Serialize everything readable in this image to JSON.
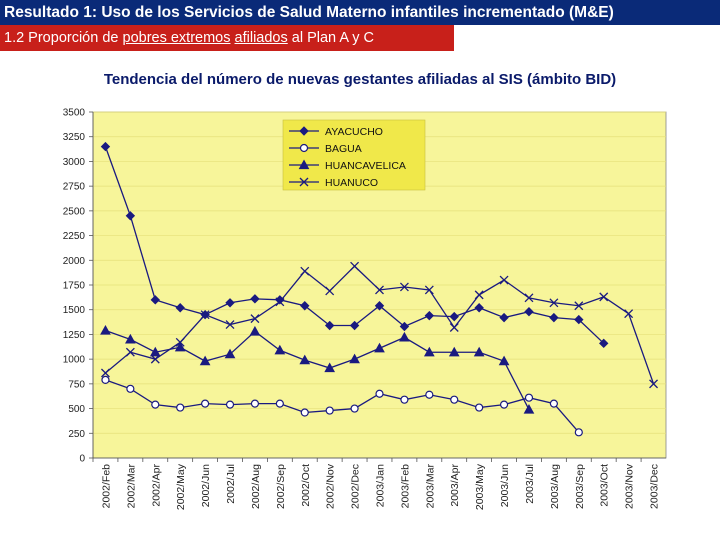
{
  "slide": {
    "title": "Resultado 1: Uso de los Servicios de Salud Materno infantiles incrementado (M&E)",
    "subtitle_prefix": "1.2 Proporción de ",
    "subtitle_emph1": "pobres extremos",
    "subtitle_mid": " ",
    "subtitle_emph2": "afiliados",
    "subtitle_suffix": " al Plan A y C",
    "chart_heading": "Tendencia del número de nuevas gestantes afiliadas al SIS (ámbito BID)"
  },
  "colors": {
    "title_bg": "#0a2a78",
    "subtitle_bg": "#c8201a",
    "plot_bg": "#f7f59a",
    "chart_bg": "#ffffff",
    "legend_bg": "#f0e84a",
    "series": "#1a1a80"
  },
  "chart_data": {
    "type": "line",
    "title": "Tendencia del número de nuevas gestantes afiliadas al SIS (ámbito BID)",
    "xlabel": "",
    "ylabel": "",
    "ylim": [
      0,
      3500
    ],
    "yticks": [
      0,
      250,
      500,
      750,
      1000,
      1250,
      1500,
      1750,
      2000,
      2250,
      2500,
      2750,
      3000,
      3250,
      3500
    ],
    "grid": true,
    "legend_position": "top-center",
    "categories": [
      "2002/Feb",
      "2002/Mar",
      "2002/Apr",
      "2002/May",
      "2002/Jun",
      "2002/Jul",
      "2002/Aug",
      "2002/Sep",
      "2002/Oct",
      "2002/Nov",
      "2002/Dec",
      "2003/Jan",
      "2003/Feb",
      "2003/Mar",
      "2003/Apr",
      "2003/May",
      "2003/Jun",
      "2003/Jul",
      "2003/Aug",
      "2003/Sep",
      "2003/Oct",
      "2003/Nov",
      "2003/Dec"
    ],
    "series": [
      {
        "name": "AYACUCHO",
        "marker": "diamond",
        "values": [
          3150,
          2450,
          1600,
          1520,
          1450,
          1570,
          1610,
          1600,
          1540,
          1340,
          1340,
          1540,
          1330,
          1440,
          1430,
          1520,
          1420,
          1480,
          1420,
          1400,
          1160,
          null,
          null
        ]
      },
      {
        "name": "BAGUA",
        "marker": "circle",
        "values": [
          790,
          700,
          540,
          510,
          550,
          540,
          550,
          550,
          460,
          480,
          500,
          650,
          590,
          640,
          590,
          510,
          540,
          610,
          550,
          260,
          null,
          null,
          null
        ]
      },
      {
        "name": "HUANCAVELICA",
        "marker": "triangle",
        "values": [
          1290,
          1200,
          1070,
          1120,
          980,
          1050,
          1280,
          1090,
          990,
          910,
          1000,
          1110,
          1220,
          1070,
          1070,
          1070,
          980,
          490,
          null,
          null,
          null,
          null,
          null
        ]
      },
      {
        "name": "HUANUCO",
        "marker": "x",
        "values": [
          860,
          1070,
          1000,
          1170,
          1450,
          1350,
          1410,
          1580,
          1890,
          1690,
          1940,
          1700,
          1730,
          1700,
          1320,
          1650,
          1800,
          1620,
          1570,
          1540,
          1630,
          1460,
          750
        ]
      }
    ]
  }
}
